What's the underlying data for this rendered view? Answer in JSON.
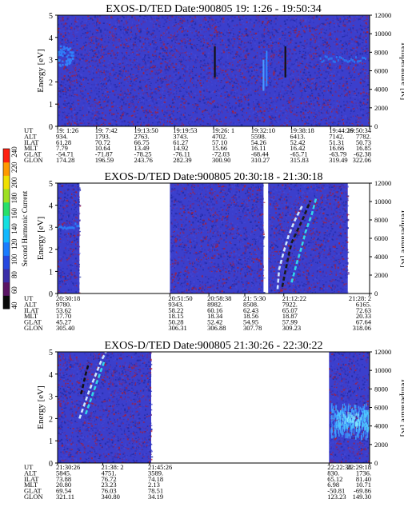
{
  "chart_data": [
    {
      "type": "heatmap",
      "title": "EXOS-D/TED   Date:900805  19: 1:26 - 19:50:34",
      "ylabel": "Energy [eV]",
      "y2label": "Temperature [K]",
      "ylim": [
        0,
        5
      ],
      "y2lim": [
        0,
        12000
      ],
      "yticks": [
        "0",
        "1",
        "2",
        "3",
        "4",
        "5"
      ],
      "y2ticks": [
        "0",
        "2000",
        "4000",
        "6000",
        "8000",
        "10000",
        "12000"
      ],
      "data_spans": [
        [
          0,
          1
        ]
      ],
      "features": [
        {
          "kind": "glow",
          "x": 0.02,
          "y": 3.2,
          "rx": 0.03,
          "ry": 0.5,
          "color": "#2f86ff"
        },
        {
          "kind": "vline",
          "x": 0.504,
          "y0": 2.2,
          "y1": 3.6,
          "color": "#111111"
        },
        {
          "kind": "vline",
          "x": 0.73,
          "y0": 2.2,
          "y1": 3.6,
          "color": "#111111"
        },
        {
          "kind": "band",
          "x0": 0.84,
          "x1": 0.99,
          "y0": 2.95,
          "y1": 3.2,
          "color": "#2a74f0"
        },
        {
          "kind": "vline",
          "x": 0.66,
          "y0": 1.6,
          "y1": 3.0,
          "color": "#4a9bff"
        },
        {
          "kind": "vline",
          "x": 0.67,
          "y0": 1.8,
          "y1": 3.4,
          "color": "#2f86ff"
        }
      ],
      "ephemeris": {
        "rows": [
          "UT",
          "ALT",
          "ILAT",
          "MLT",
          "GLAT",
          "GLON"
        ],
        "columns": [
          {
            "x": 0.0,
            "values": [
              "19: 1:26",
              "934.",
              "61.28",
              "7.79",
              "-54.71",
              "174.28"
            ]
          },
          {
            "x": 0.125,
            "values": [
              "19: 7:42",
              "1793.",
              "70.72",
              "10.64",
              "-71.87",
              "196.59"
            ]
          },
          {
            "x": 0.25,
            "values": [
              "19:13:50",
              "2763.",
              "66.75",
              "13.49",
              "-78.25",
              "243.76"
            ]
          },
          {
            "x": 0.375,
            "values": [
              "19:19:53",
              "3743.",
              "61.27",
              "14.92",
              "-76.11",
              "282.39"
            ]
          },
          {
            "x": 0.5,
            "values": [
              "19:26: 1",
              "4702.",
              "57.10",
              "15.66",
              "-72.03",
              "300.90"
            ]
          },
          {
            "x": 0.625,
            "values": [
              "19:32:10",
              "5598.",
              "54.26",
              "16.11",
              "-68.44",
              "310.27"
            ]
          },
          {
            "x": 0.75,
            "values": [
              "19:38:18",
              "6413.",
              "52.42",
              "16.42",
              "-65.71",
              "315.83"
            ]
          },
          {
            "x": 0.875,
            "values": [
              "19:44:26",
              "7142.",
              "51.31",
              "16.66",
              "-63.79",
              "319.49"
            ]
          },
          {
            "x": 1.0,
            "values": [
              "19:50:34",
              "7782.",
              "50.73",
              "16.85",
              "-62.38",
              "322.06"
            ]
          }
        ]
      }
    },
    {
      "type": "heatmap",
      "title": "EXOS-D/TED   Date:900805  20:30:18 - 21:30:18",
      "ylabel": "Energy [eV]",
      "y2label": "Temperature [K]",
      "ylim": [
        0,
        5
      ],
      "y2lim": [
        0,
        12000
      ],
      "yticks": [
        "0",
        "1",
        "2",
        "3",
        "4",
        "5"
      ],
      "y2ticks": [
        "0",
        "2000",
        "4000",
        "6000",
        "8000",
        "10000",
        "12000"
      ],
      "data_spans": [
        [
          0,
          0.07
        ],
        [
          0.36,
          0.66
        ],
        [
          0.675,
          0.93
        ]
      ],
      "features": [
        {
          "kind": "band",
          "x0": 0.0,
          "x1": 0.07,
          "y0": 2.95,
          "y1": 3.25,
          "color": "#2a7cf5"
        },
        {
          "kind": "streak",
          "points": [
            [
              0.72,
              0.3
            ],
            [
              0.73,
              1.0
            ],
            [
              0.74,
              1.7
            ],
            [
              0.75,
              2.3
            ],
            [
              0.77,
              2.9
            ],
            [
              0.79,
              3.5
            ],
            [
              0.81,
              4.2
            ]
          ],
          "color": "#1a1a1a"
        },
        {
          "kind": "streak",
          "points": [
            [
              0.705,
              0.2
            ],
            [
              0.71,
              1.1
            ],
            [
              0.725,
              1.9
            ],
            [
              0.74,
              2.6
            ],
            [
              0.76,
              3.3
            ],
            [
              0.785,
              4.0
            ]
          ],
          "color": "#cde6ff"
        },
        {
          "kind": "streak",
          "points": [
            [
              0.75,
              0.5
            ],
            [
              0.765,
              1.3
            ],
            [
              0.78,
              2.0
            ],
            [
              0.795,
              2.8
            ],
            [
              0.815,
              3.6
            ],
            [
              0.83,
              4.4
            ]
          ],
          "color": "#33d6e8"
        }
      ],
      "ephemeris": {
        "rows": [
          "UT",
          "ALT",
          "ILAT",
          "MLT",
          "GLAT",
          "GLON"
        ],
        "columns": [
          {
            "x": 0.0,
            "values": [
              "20:30:18",
              "9780.",
              "53.62",
              "17.70",
              "45.27",
              "305.40"
            ]
          },
          {
            "x": 0.36,
            "values": [
              "20:51:50",
              "9343.",
              "58.22",
              "18.15",
              "50.28",
              "306.31"
            ]
          },
          {
            "x": 0.485,
            "values": [
              "20:58:38",
              "8982.",
              "60.16",
              "18.34",
              "52.42",
              "306.88"
            ]
          },
          {
            "x": 0.6,
            "values": [
              "21: 5:30",
              "8508.",
              "62.43",
              "18.56",
              "54.95",
              "307.78"
            ]
          },
          {
            "x": 0.725,
            "values": [
              "21:12:22",
              "7922.",
              "65.07",
              "18.87",
              "57.99",
              "309.23"
            ]
          },
          {
            "x": 1.0,
            "values": [
              "21:28: 2",
              "6165.",
              "72.63",
              "20.33",
              "67.64",
              "318.06"
            ]
          }
        ]
      }
    },
    {
      "type": "heatmap",
      "title": "EXOS-D/TED   Date:900805  21:30:26 - 22:30:22",
      "ylabel": "Energy [eV]",
      "y2label": "Temperature [K]",
      "ylim": [
        0,
        5
      ],
      "y2lim": [
        0,
        12000
      ],
      "yticks": [
        "0",
        "1",
        "2",
        "3",
        "4",
        "5"
      ],
      "y2ticks": [
        "0",
        "2000",
        "4000",
        "6000",
        "8000",
        "10000",
        "12000"
      ],
      "data_spans": [
        [
          0,
          0.3
        ],
        [
          0.87,
          1.0
        ]
      ],
      "features": [
        {
          "kind": "streak",
          "points": [
            [
              0.075,
              3.1
            ],
            [
              0.082,
              3.5
            ],
            [
              0.09,
              4.0
            ],
            [
              0.1,
              4.5
            ]
          ],
          "color": "#111111"
        },
        {
          "kind": "streak",
          "points": [
            [
              0.07,
              2.0
            ],
            [
              0.085,
              2.6
            ],
            [
              0.1,
              3.2
            ],
            [
              0.12,
              3.9
            ],
            [
              0.14,
              4.6
            ],
            [
              0.155,
              5.0
            ]
          ],
          "color": "#cde6ff"
        },
        {
          "kind": "streak",
          "points": [
            [
              0.09,
              2.2
            ],
            [
              0.105,
              2.8
            ],
            [
              0.12,
              3.4
            ],
            [
              0.135,
              4.0
            ],
            [
              0.15,
              4.6
            ]
          ],
          "color": "#33d6e8"
        },
        {
          "kind": "block",
          "x0": 0.875,
          "x1": 1.0,
          "y0": 1.2,
          "y1": 2.7,
          "color": "#3fa0ff"
        },
        {
          "kind": "block",
          "x0": 0.89,
          "x1": 1.0,
          "y0": 1.6,
          "y1": 2.4,
          "color": "#4ec6ff"
        },
        {
          "kind": "block",
          "x0": 0.91,
          "x1": 0.97,
          "y0": 1.8,
          "y1": 2.3,
          "color": "#7fe4ff"
        }
      ],
      "ephemeris": {
        "rows": [
          "UT",
          "ALT",
          "ILAT",
          "MLT",
          "GLAT",
          "GLON"
        ],
        "columns": [
          {
            "x": 0.0,
            "values": [
              "21:30:26",
              "5845.",
              "73.88",
              "20.80",
              "69.54",
              "321.11"
            ]
          },
          {
            "x": 0.145,
            "values": [
              "21:38: 2",
              "4751.",
              "76.72",
              "23.23",
              "76.03",
              "340.80"
            ]
          },
          {
            "x": 0.295,
            "values": [
              "21:45:26",
              "3589.",
              "74.18",
              "2.13",
              "78.51",
              "34.19"
            ]
          },
          {
            "x": 0.87,
            "values": [
              "22:22:30",
              "830.",
              "65.12",
              "6.98",
              "-50.81",
              "123.23"
            ]
          },
          {
            "x": 1.0,
            "values": [
              "22:29:18",
              "1736.",
              "81.40",
              "10.71",
              "-69.86",
              "149.30"
            ]
          }
        ]
      }
    }
  ],
  "colorbar": {
    "label": "Second Harmonic Current",
    "ticks": [
      "40",
      "60",
      "80",
      "100",
      "120",
      "140",
      "160",
      "180",
      "200",
      "220",
      "240"
    ],
    "colors": [
      "#0a0a0a",
      "#5a1464",
      "#3a2ea8",
      "#2648e0",
      "#1a7cff",
      "#10b8ff",
      "#14e0e0",
      "#28e06a",
      "#9ee020",
      "#f0e000",
      "#ff9a00",
      "#ff2010"
    ]
  },
  "palette": {
    "background": "#3b3fcc",
    "noise": [
      "#2f31b8",
      "#4548d6",
      "#6a2c8e",
      "#b01c2c",
      "#1e2aa0"
    ]
  }
}
